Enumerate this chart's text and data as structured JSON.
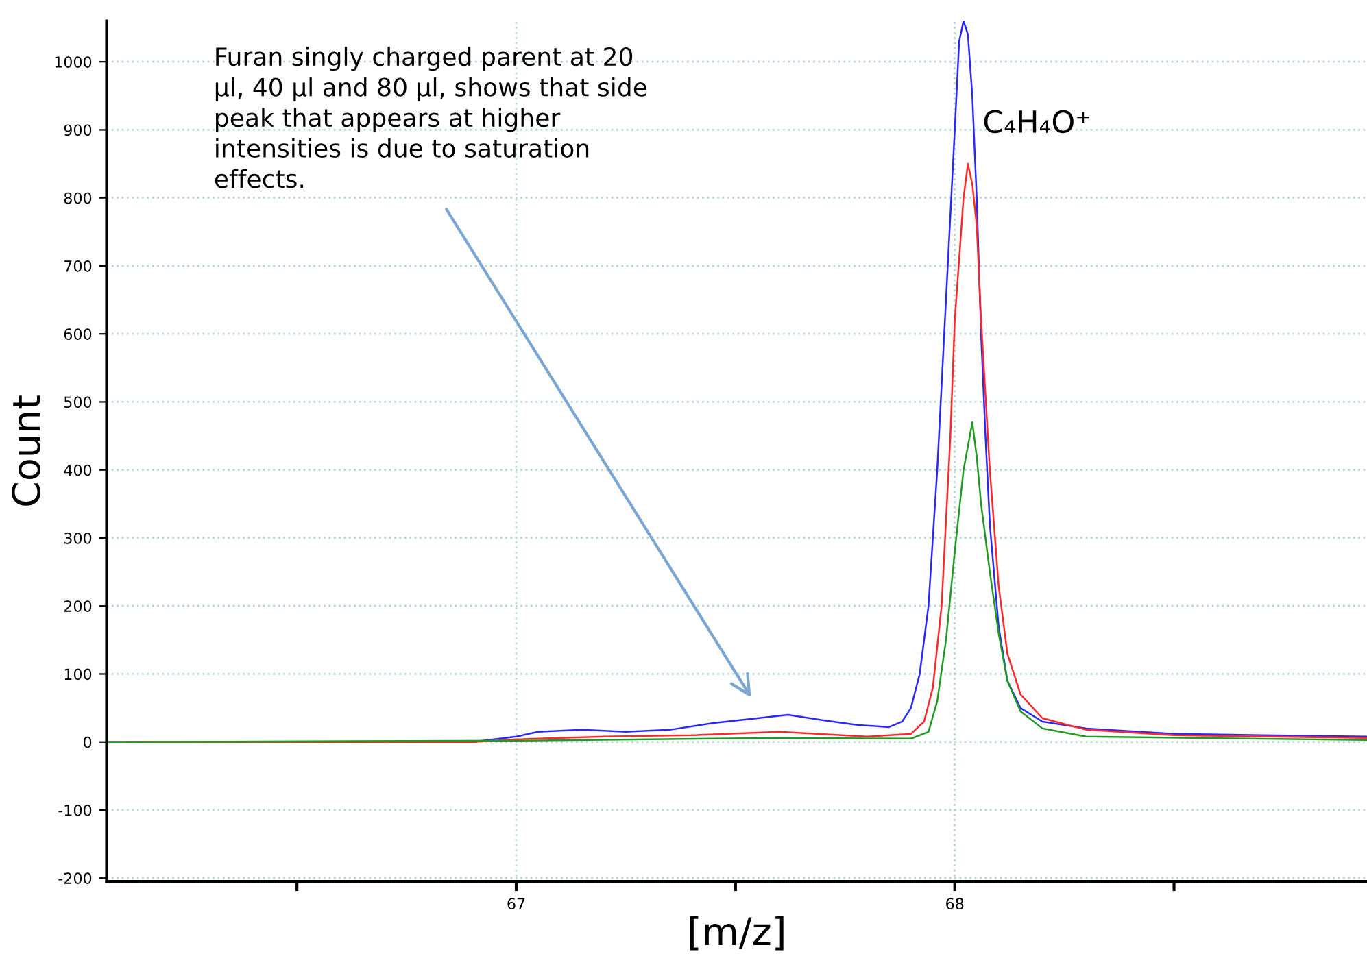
{
  "chart_data": {
    "type": "line",
    "xlabel": "[m/z]",
    "ylabel": "Count",
    "xlim": [
      66.066,
      68.94
    ],
    "ylim": [
      -205,
      1060
    ],
    "xticks": [
      {
        "value": 66.5,
        "label": null
      },
      67,
      {
        "value": 67.5,
        "label": null
      },
      68,
      {
        "value": 68.5,
        "label": null
      }
    ],
    "yticks": [
      -200,
      -100,
      0,
      100,
      200,
      300,
      400,
      500,
      600,
      700,
      800,
      900,
      1000
    ],
    "grid": true,
    "legend": false,
    "marker": "none",
    "line_style": "solid",
    "annotations": [
      "Furan singly charged parent at 20\nµl, 40 µl and 80 µl, shows that side\npeak that appears at higher\nintensities is due to saturation\neffects.",
      "C₄H₄O⁺"
    ],
    "series": [
      {
        "color": "#2828ff",
        "x": [
          66.066,
          66.5,
          66.9,
          67.0,
          67.05,
          67.15,
          67.25,
          67.35,
          67.45,
          67.55,
          67.62,
          67.7,
          67.78,
          67.85,
          67.88,
          67.9,
          67.92,
          67.94,
          67.96,
          67.98,
          68.0,
          68.01,
          68.02,
          68.03,
          68.04,
          68.05,
          68.06,
          68.07,
          68.08,
          68.1,
          68.12,
          68.15,
          68.2,
          68.3,
          68.5,
          68.7,
          68.94
        ],
        "values": [
          0,
          0,
          0,
          8,
          15,
          18,
          15,
          18,
          28,
          35,
          40,
          32,
          25,
          22,
          30,
          50,
          100,
          200,
          400,
          650,
          900,
          1030,
          1060,
          1040,
          950,
          800,
          600,
          450,
          320,
          170,
          90,
          50,
          30,
          20,
          12,
          10,
          8
        ]
      },
      {
        "color": "#ff2828",
        "x": [
          66.066,
          66.9,
          67.0,
          67.2,
          67.4,
          67.6,
          67.8,
          67.9,
          67.93,
          67.95,
          67.97,
          67.99,
          68.0,
          68.02,
          68.03,
          68.04,
          68.05,
          68.06,
          68.08,
          68.1,
          68.12,
          68.15,
          68.2,
          68.3,
          68.5,
          68.94
        ],
        "values": [
          0,
          0,
          4,
          8,
          10,
          15,
          8,
          12,
          30,
          80,
          200,
          450,
          620,
          800,
          850,
          820,
          760,
          620,
          400,
          230,
          130,
          70,
          35,
          18,
          10,
          6
        ]
      },
      {
        "color": "#229922",
        "x": [
          66.066,
          67.0,
          67.6,
          67.9,
          67.94,
          67.96,
          67.98,
          68.0,
          68.02,
          68.04,
          68.05,
          68.06,
          68.08,
          68.1,
          68.12,
          68.15,
          68.2,
          68.3,
          68.94
        ],
        "values": [
          0,
          2,
          6,
          5,
          15,
          60,
          150,
          280,
          400,
          470,
          420,
          350,
          250,
          160,
          90,
          45,
          20,
          8,
          3
        ]
      }
    ]
  }
}
